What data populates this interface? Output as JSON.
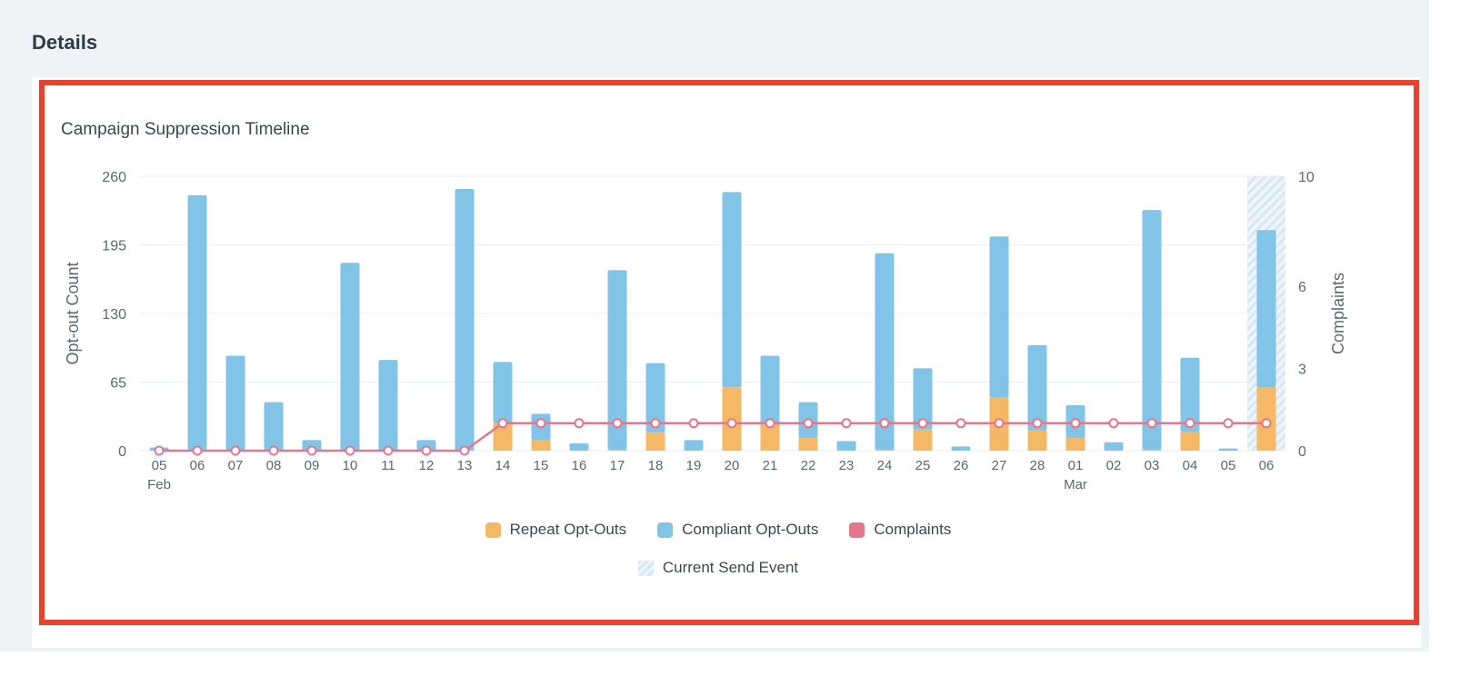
{
  "section": {
    "title": "Details"
  },
  "chart_title": "Campaign Suppression Timeline",
  "colors": {
    "repeat": "#f5b864",
    "compliant": "#82c3e8",
    "complaints": "#e2788a",
    "current": "#d6e8f5",
    "grid": "#e9eef2"
  },
  "legend": {
    "repeat": "Repeat Opt-Outs",
    "compliant": "Compliant Opt-Outs",
    "complaints": "Complaints",
    "current": "Current Send Event"
  },
  "chart_data": {
    "type": "bar",
    "stacked": true,
    "x": [
      "05",
      "06",
      "07",
      "08",
      "09",
      "10",
      "11",
      "12",
      "13",
      "14",
      "15",
      "16",
      "17",
      "18",
      "19",
      "20",
      "21",
      "22",
      "23",
      "24",
      "25",
      "26",
      "27",
      "28",
      "01",
      "02",
      "03",
      "04",
      "05",
      "06"
    ],
    "month_labels": [
      {
        "index": 0,
        "label": "Feb"
      },
      {
        "index": 24,
        "label": "Mar"
      }
    ],
    "ylabel": "Opt-out Count",
    "y2label": "Complaints",
    "ylim": [
      0,
      260
    ],
    "yticks": [
      0,
      65,
      130,
      195,
      260
    ],
    "y2lim": [
      0,
      10
    ],
    "y2ticks": [
      0,
      3,
      6,
      10
    ],
    "current_send_event_index": 29,
    "series": [
      {
        "name": "Repeat Opt-Outs",
        "type": "bar",
        "values": [
          0,
          0,
          0,
          0,
          0,
          0,
          0,
          0,
          0,
          26,
          10,
          0,
          1,
          17,
          0,
          60,
          26,
          12,
          0,
          1,
          20,
          0,
          50,
          19,
          12,
          0,
          1,
          18,
          0,
          60
        ]
      },
      {
        "name": "Compliant Opt-Outs",
        "type": "bar",
        "values": [
          3,
          242,
          90,
          46,
          10,
          178,
          86,
          10,
          248,
          58,
          25,
          7,
          170,
          66,
          10,
          185,
          64,
          34,
          9,
          186,
          58,
          4,
          153,
          81,
          31,
          8,
          227,
          70,
          2,
          149
        ]
      },
      {
        "name": "Complaints",
        "type": "line",
        "axis": "right",
        "values": [
          0,
          0,
          0,
          0,
          0,
          0,
          0,
          0,
          0,
          1,
          1,
          1,
          1,
          1,
          1,
          1,
          1,
          1,
          1,
          1,
          1,
          1,
          1,
          1,
          1,
          1,
          1,
          1,
          1,
          1
        ]
      }
    ],
    "grid": true,
    "legend_position": "bottom"
  }
}
